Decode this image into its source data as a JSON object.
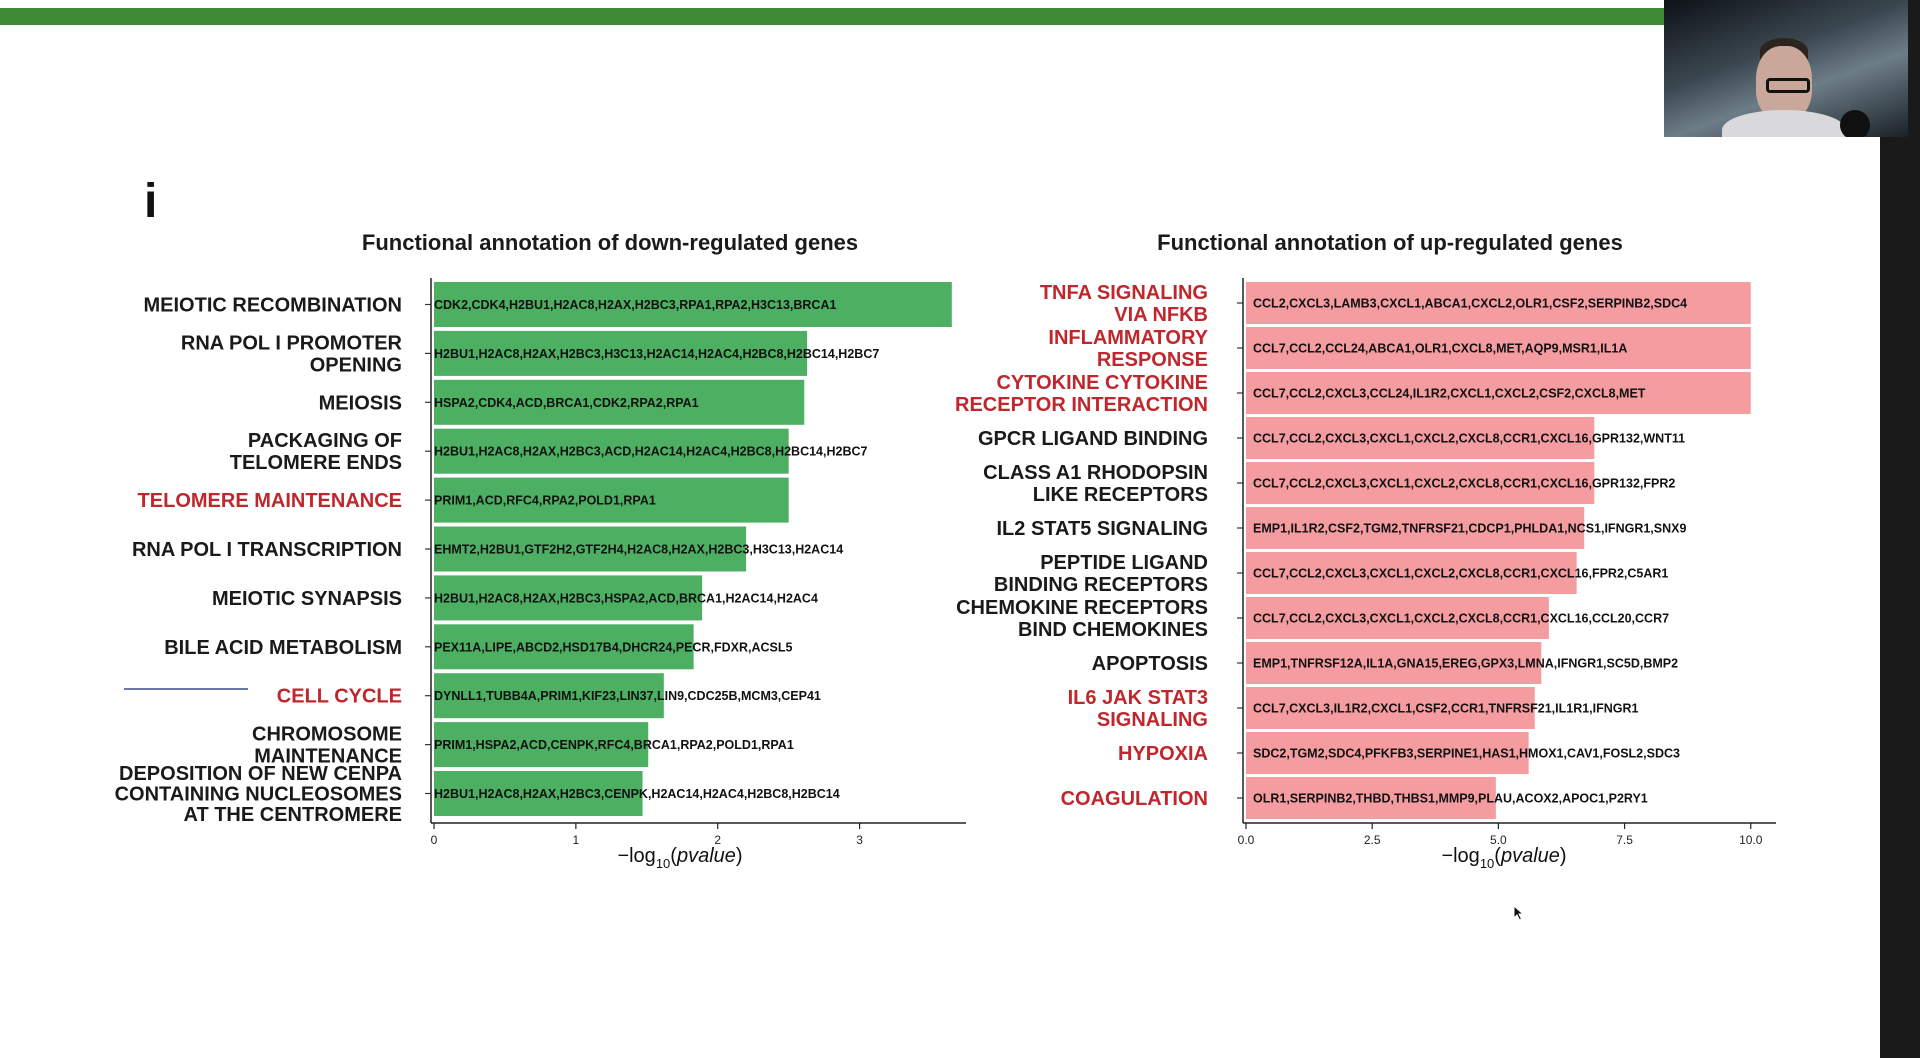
{
  "slide": {
    "panel_letter": "i",
    "accent_color": "#3f8a35",
    "highlight_color": "#c0272d"
  },
  "chart_data": [
    {
      "type": "bar",
      "orientation": "horizontal",
      "title": "Functional annotation of down-regulated genes",
      "xlabel": "−log10(pvalue)",
      "xlabel_parts": {
        "prefix": "−log",
        "subscript": "10",
        "suffix": "(",
        "italic": "pvalue",
        "end": ")"
      },
      "xlim": [
        0,
        3.75
      ],
      "xticks": [
        0,
        1,
        2,
        3
      ],
      "xtick_labels": [
        "0",
        "1",
        "2",
        "3"
      ],
      "bar_color": "#4daf62",
      "grid": false,
      "categories": [
        {
          "lines": [
            "MEIOTIC RECOMBINATION"
          ],
          "highlight": false,
          "value": 3.65,
          "genes": "CDK2,CDK4,H2BU1,H2AC8,H2AX,H2BC3,RPA1,RPA2,H3C13,BRCA1"
        },
        {
          "lines": [
            "RNA POL I PROMOTER",
            "OPENING"
          ],
          "highlight": false,
          "value": 2.63,
          "genes": "H2BU1,H2AC8,H2AX,H2BC3,H3C13,H2AC14,H2AC4,H2BC8,H2BC14,H2BC7"
        },
        {
          "lines": [
            "MEIOSIS"
          ],
          "highlight": false,
          "value": 2.61,
          "genes": "HSPA2,CDK4,ACD,BRCA1,CDK2,RPA2,RPA1"
        },
        {
          "lines": [
            "PACKAGING OF",
            "TELOMERE ENDS"
          ],
          "highlight": false,
          "value": 2.5,
          "genes": "H2BU1,H2AC8,H2AX,H2BC3,ACD,H2AC14,H2AC4,H2BC8,H2BC14,H2BC7"
        },
        {
          "lines": [
            "TELOMERE MAINTENANCE"
          ],
          "highlight": true,
          "value": 2.5,
          "genes": "PRIM1,ACD,RFC4,RPA2,POLD1,RPA1"
        },
        {
          "lines": [
            "RNA POL I TRANSCRIPTION"
          ],
          "highlight": false,
          "value": 2.2,
          "genes": "EHMT2,H2BU1,GTF2H2,GTF2H4,H2AC8,H2AX,H2BC3,H3C13,H2AC14"
        },
        {
          "lines": [
            "MEIOTIC SYNAPSIS"
          ],
          "highlight": false,
          "value": 1.89,
          "genes": "H2BU1,H2AC8,H2AX,H2BC3,HSPA2,ACD,BRCA1,H2AC14,H2AC4"
        },
        {
          "lines": [
            "BILE ACID METABOLISM"
          ],
          "highlight": false,
          "value": 1.83,
          "genes": "PEX11A,LIPE,ABCD2,HSD17B4,DHCR24,PECR,FDXR,ACSL5"
        },
        {
          "lines": [
            "CELL CYCLE"
          ],
          "highlight": true,
          "value": 1.62,
          "genes": "DYNLL1,TUBB4A,PRIM1,KIF23,LIN37,LIN9,CDC25B,MCM3,CEP41"
        },
        {
          "lines": [
            "CHROMOSOME",
            "MAINTENANCE"
          ],
          "highlight": false,
          "value": 1.51,
          "genes": "PRIM1,HSPA2,ACD,CENPK,RFC4,BRCA1,RPA2,POLD1,RPA1"
        },
        {
          "lines": [
            "DEPOSITION OF NEW CENPA",
            "CONTAINING NUCLEOSOMES",
            "AT THE CENTROMERE"
          ],
          "highlight": false,
          "value": 1.47,
          "genes": "H2BU1,H2AC8,H2AX,H2BC3,CENPK,H2AC14,H2AC4,H2BC8,H2BC14"
        }
      ]
    },
    {
      "type": "bar",
      "orientation": "horizontal",
      "title": "Functional annotation of up-regulated genes",
      "xlabel": "−log10(pvalue)",
      "xlabel_parts": {
        "prefix": "−log",
        "subscript": "10",
        "suffix": "(",
        "italic": "pvalue",
        "end": ")"
      },
      "xlim": [
        0,
        10.5
      ],
      "xticks": [
        0,
        2.5,
        5,
        7.5,
        10
      ],
      "xtick_labels": [
        "0.0",
        "2.5",
        "5.0",
        "7.5",
        "10.0"
      ],
      "bar_color": "#f49ca0",
      "grid": false,
      "categories": [
        {
          "lines": [
            "TNFA SIGNALING",
            "VIA NFKB"
          ],
          "highlight": true,
          "value": 10.0,
          "genes": "CCL2,CXCL3,LAMB3,CXCL1,ABCA1,CXCL2,OLR1,CSF2,SERPINB2,SDC4"
        },
        {
          "lines": [
            "INFLAMMATORY",
            "RESPONSE"
          ],
          "highlight": true,
          "value": 10.0,
          "genes": "CCL7,CCL2,CCL24,ABCA1,OLR1,CXCL8,MET,AQP9,MSR1,IL1A"
        },
        {
          "lines": [
            "CYTOKINE CYTOKINE",
            "RECEPTOR INTERACTION"
          ],
          "highlight": true,
          "value": 10.0,
          "genes": "CCL7,CCL2,CXCL3,CCL24,IL1R2,CXCL1,CXCL2,CSF2,CXCL8,MET"
        },
        {
          "lines": [
            "GPCR LIGAND BINDING"
          ],
          "highlight": false,
          "value": 6.9,
          "genes": "CCL7,CCL2,CXCL3,CXCL1,CXCL2,CXCL8,CCR1,CXCL16,GPR132,WNT11"
        },
        {
          "lines": [
            "CLASS A1 RHODOPSIN",
            "LIKE RECEPTORS"
          ],
          "highlight": false,
          "value": 6.9,
          "genes": "CCL7,CCL2,CXCL3,CXCL1,CXCL2,CXCL8,CCR1,CXCL16,GPR132,FPR2"
        },
        {
          "lines": [
            "IL2 STAT5 SIGNALING"
          ],
          "highlight": false,
          "value": 6.7,
          "genes": "EMP1,IL1R2,CSF2,TGM2,TNFRSF21,CDCP1,PHLDA1,NCS1,IFNGR1,SNX9"
        },
        {
          "lines": [
            "PEPTIDE LIGAND",
            "BINDING RECEPTORS"
          ],
          "highlight": false,
          "value": 6.55,
          "genes": "CCL7,CCL2,CXCL3,CXCL1,CXCL2,CXCL8,CCR1,CXCL16,FPR2,C5AR1"
        },
        {
          "lines": [
            "CHEMOKINE RECEPTORS",
            "BIND CHEMOKINES"
          ],
          "highlight": false,
          "value": 6.0,
          "genes": "CCL7,CCL2,CXCL3,CXCL1,CXCL2,CXCL8,CCR1,CXCL16,CCL20,CCR7"
        },
        {
          "lines": [
            "APOPTOSIS"
          ],
          "highlight": false,
          "value": 5.85,
          "genes": "EMP1,TNFRSF12A,IL1A,GNA15,EREG,GPX3,LMNA,IFNGR1,SC5D,BMP2"
        },
        {
          "lines": [
            "IL6 JAK STAT3",
            "SIGNALING"
          ],
          "highlight": true,
          "value": 5.72,
          "genes": "CCL7,CXCL3,IL1R2,CXCL1,CSF2,CCR1,TNFRSF21,IL1R1,IFNGR1"
        },
        {
          "lines": [
            "HYPOXIA"
          ],
          "highlight": true,
          "value": 5.6,
          "genes": "SDC2,TGM2,SDC4,PFKFB3,SERPINE1,HAS1,HMOX1,CAV1,FOSL2,SDC3"
        },
        {
          "lines": [
            "COAGULATION"
          ],
          "highlight": true,
          "value": 4.95,
          "genes": "OLR1,SERPINB2,THBD,THBS1,MMP9,PLAU,ACOX2,APOC1,P2RY1"
        }
      ]
    }
  ]
}
